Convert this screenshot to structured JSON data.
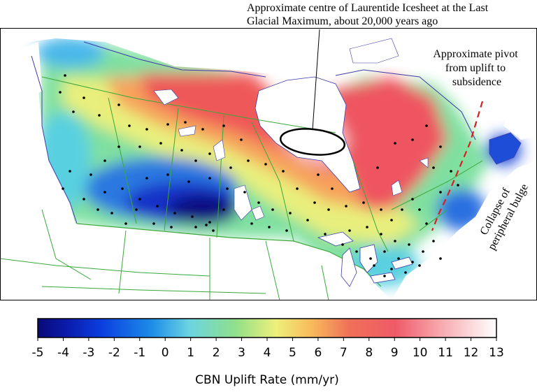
{
  "annotations": {
    "lgm_centre": [
      "Approximate centre of Laurentide Icesheet at the Last",
      "Glacial Maximum, about 20,000 years ago"
    ],
    "pivot": [
      "Approximate pivot",
      "from uplift to",
      "subsidence"
    ],
    "bulge": [
      "Collapse of",
      "peripheral bulge"
    ]
  },
  "legend": {
    "title": "CBN Uplift Rate (mm/yr)",
    "ticks": [
      "-5",
      "-4",
      "-3",
      "-2",
      "-1",
      "0",
      "1",
      "2",
      "3",
      "4",
      "5",
      "6",
      "7",
      "8",
      "9",
      "10",
      "11",
      "12",
      "13"
    ],
    "range": [
      -5,
      13
    ],
    "colors": [
      "#0a0a78",
      "#0c2ad8",
      "#1e8ee8",
      "#6bd4e2",
      "#8fe08a",
      "#eef07a",
      "#f7b85a",
      "#ef5a58",
      "#f6a3a8",
      "#ffffff"
    ]
  },
  "colors": {
    "border": "#3aa83a",
    "water": "#ffffff",
    "land": "#ffffff",
    "coast": "#3c3ca8",
    "pivot_line": "#d81f26"
  },
  "icons": {
    "stations": "station-dot",
    "lgm_centre": "ellipse-outline"
  }
}
